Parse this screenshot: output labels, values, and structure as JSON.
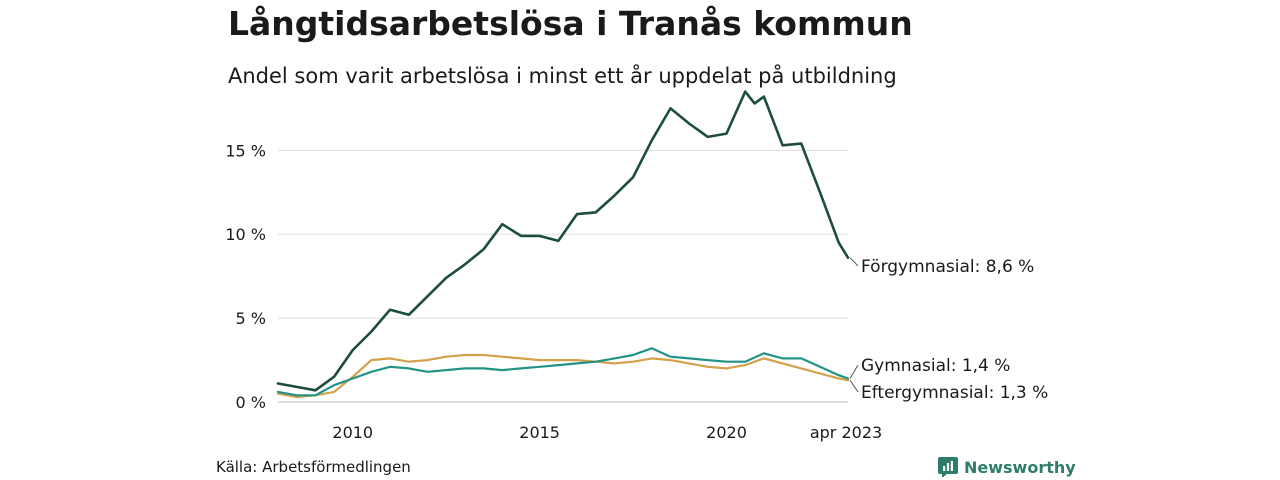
{
  "header": {
    "title": "Långtidsarbetslösa i Tranås kommun",
    "subtitle": "Andel som varit arbetslösa i minst ett år uppdelat på utbildning"
  },
  "footer": {
    "source": "Källa: Arbetsförmedlingen",
    "brand": "Newsworthy"
  },
  "colors": {
    "forgymnasial": "#1e4d3c",
    "gymnasial": "#229384",
    "eftergymnasial": "#d4a04a",
    "grid": "#dddddd",
    "brand": "#2e7d6b"
  },
  "chart_data": {
    "type": "line",
    "title": "Långtidsarbetslösa i Tranås kommun",
    "subtitle": "Andel som varit arbetslösa i minst ett år uppdelat på utbildning",
    "x_range": [
      2008.0,
      2023.25
    ],
    "ylim": [
      0,
      18
    ],
    "y_ticks": [
      0,
      5,
      10,
      15
    ],
    "y_tick_labels": [
      "0 %",
      "5 %",
      "10 %",
      "15 %"
    ],
    "x_ticks": [
      2010,
      2015,
      2020,
      2023.25
    ],
    "x_tick_labels": [
      "2010",
      "2015",
      "2020",
      "apr 2023"
    ],
    "grid": true,
    "legend": "direct labels at line ends (right)",
    "series": [
      {
        "name": "Förgymnasial",
        "end_label": "Förgymnasial: 8,6 %",
        "x": [
          2008.0,
          2008.5,
          2009.0,
          2009.5,
          2010.0,
          2010.5,
          2011.0,
          2011.5,
          2012.0,
          2012.5,
          2013.0,
          2013.5,
          2014.0,
          2014.5,
          2015.0,
          2015.5,
          2016.0,
          2016.5,
          2017.0,
          2017.5,
          2018.0,
          2018.5,
          2019.0,
          2019.5,
          2020.0,
          2020.5,
          2020.75,
          2021.0,
          2021.5,
          2022.0,
          2022.5,
          2023.0,
          2023.25
        ],
        "values": [
          1.1,
          0.9,
          0.7,
          1.5,
          3.1,
          4.2,
          5.5,
          5.2,
          6.3,
          7.4,
          8.2,
          9.1,
          10.6,
          9.9,
          9.9,
          9.6,
          11.2,
          11.3,
          12.3,
          13.4,
          15.6,
          17.5,
          16.6,
          15.8,
          16.0,
          18.5,
          17.8,
          18.2,
          15.3,
          15.4,
          12.5,
          9.5,
          8.6
        ]
      },
      {
        "name": "Gymnasial",
        "end_label": "Gymnasial: 1,4 %",
        "x": [
          2008.0,
          2008.5,
          2009.0,
          2009.5,
          2010.0,
          2010.5,
          2011.0,
          2011.5,
          2012.0,
          2012.5,
          2013.0,
          2013.5,
          2014.0,
          2014.5,
          2015.0,
          2015.5,
          2016.0,
          2016.5,
          2017.0,
          2017.5,
          2018.0,
          2018.5,
          2019.0,
          2019.5,
          2020.0,
          2020.5,
          2021.0,
          2021.5,
          2022.0,
          2022.5,
          2023.0,
          2023.25
        ],
        "values": [
          0.6,
          0.4,
          0.4,
          1.0,
          1.4,
          1.8,
          2.1,
          2.0,
          1.8,
          1.9,
          2.0,
          2.0,
          1.9,
          2.0,
          2.1,
          2.2,
          2.3,
          2.4,
          2.6,
          2.8,
          3.2,
          2.7,
          2.6,
          2.5,
          2.4,
          2.4,
          2.9,
          2.6,
          2.6,
          2.1,
          1.6,
          1.4
        ]
      },
      {
        "name": "Eftergymnasial",
        "end_label": "Eftergymnasial: 1,3 %",
        "x": [
          2008.0,
          2008.5,
          2009.0,
          2009.5,
          2010.0,
          2010.5,
          2011.0,
          2011.5,
          2012.0,
          2012.5,
          2013.0,
          2013.5,
          2014.0,
          2014.5,
          2015.0,
          2015.5,
          2016.0,
          2016.5,
          2017.0,
          2017.5,
          2018.0,
          2018.5,
          2019.0,
          2019.5,
          2020.0,
          2020.5,
          2021.0,
          2021.5,
          2022.0,
          2022.5,
          2023.0,
          2023.25
        ],
        "values": [
          0.5,
          0.3,
          0.4,
          0.6,
          1.5,
          2.5,
          2.6,
          2.4,
          2.5,
          2.7,
          2.8,
          2.8,
          2.7,
          2.6,
          2.5,
          2.5,
          2.5,
          2.4,
          2.3,
          2.4,
          2.6,
          2.5,
          2.3,
          2.1,
          2.0,
          2.2,
          2.6,
          2.3,
          2.0,
          1.7,
          1.4,
          1.3
        ]
      }
    ]
  }
}
